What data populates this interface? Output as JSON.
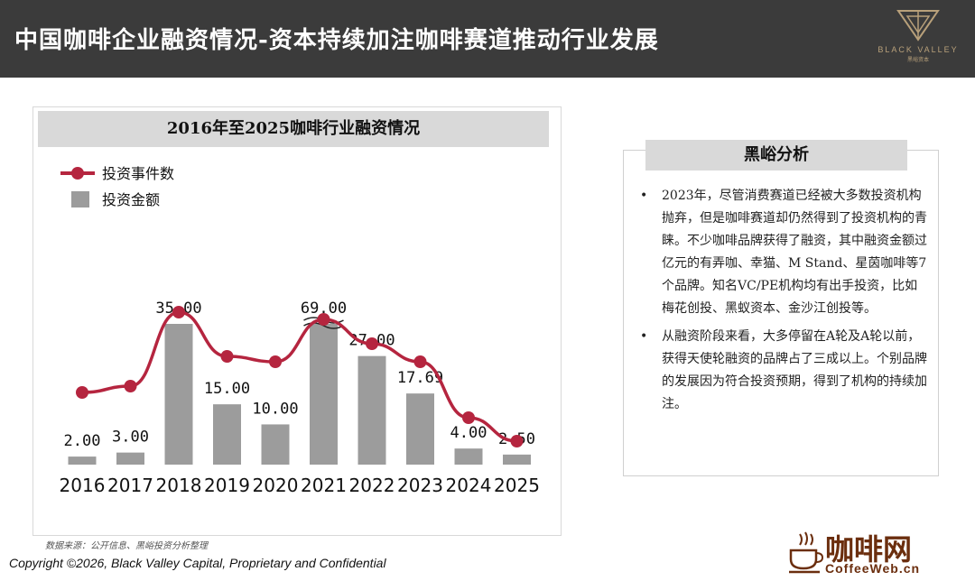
{
  "header": {
    "title": "中国咖啡企业融资情况-资本持续加注咖啡赛道推动行业发展",
    "logo_text": "BLACK VALLEY",
    "logo_sub": "黑峪资本"
  },
  "chart_data": {
    "type": "bar",
    "title": "2016年至2025咖啡行业融资情况",
    "categories": [
      "2016",
      "2017",
      "2018",
      "2019",
      "2020",
      "2021",
      "2022",
      "2023",
      "2024",
      "2025"
    ],
    "series": [
      {
        "name": "投资金额",
        "kind": "bar",
        "color": "#9c9c9c",
        "values": [
          2.0,
          3.0,
          35.0,
          15.0,
          10.0,
          69.0,
          27.0,
          17.69,
          4.0,
          2.5
        ],
        "labels": [
          "2.00",
          "3.00",
          "35.00",
          "15.00",
          "10.00",
          "69.00",
          "27.00",
          "17.69",
          "4.00",
          "2.50"
        ]
      },
      {
        "name": "投资事件数",
        "kind": "line",
        "color": "#b5253f",
        "values": [
          null,
          null,
          null,
          null,
          null,
          null,
          null,
          null,
          null,
          null
        ]
      }
    ],
    "axis_break": "2021",
    "legend_position": "top-left",
    "grid": false
  },
  "source_note": "数据来源：公开信息、黑峪投资分析整理",
  "copyright": "Copyright ©2026, Black Valley Capital, Proprietary and Confidential",
  "analysis": {
    "title": "黑峪分析",
    "bullets": [
      "2023年，尽管消费赛道已经被大多数投资机构抛弃，但是咖啡赛道却仍然得到了投资机构的青睐。不少咖啡品牌获得了融资，其中融资金额过亿元的有弄咖、幸猫、M Stand、星茵咖啡等7个品牌。知名VC/PE机构均有出手投资，比如梅花创投、黑蚁资本、金沙江创投等。",
      "从融资阶段来看，大多停留在A轮及A轮以前，获得天使轮融资的品牌占了三成以上。个别品牌的发展因为符合投资预期，得到了机构的持续加注。"
    ],
    "bullet_symbol": "•"
  },
  "watermark": {
    "cn": "咖啡网",
    "en": "CoffeeWeb.cn"
  }
}
